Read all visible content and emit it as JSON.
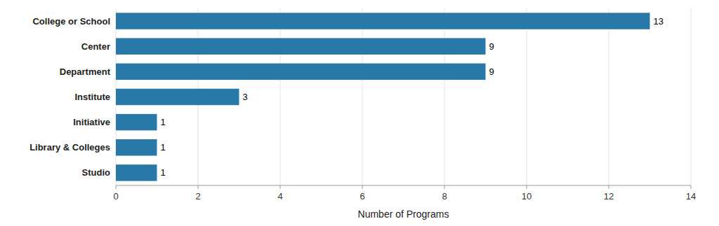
{
  "chart_data": {
    "type": "bar",
    "orientation": "horizontal",
    "categories": [
      "College or School",
      "Center",
      "Department",
      "Institute",
      "Initiative",
      "Library & Colleges",
      "Studio"
    ],
    "values": [
      13,
      9,
      9,
      3,
      1,
      1,
      1
    ],
    "color": "#2878a8",
    "xlabel": "Number of Programs",
    "xlim": [
      0,
      14
    ],
    "xticks": [
      0,
      2,
      4,
      6,
      8,
      10,
      12,
      14
    ],
    "grid": true,
    "data_labels": true
  }
}
